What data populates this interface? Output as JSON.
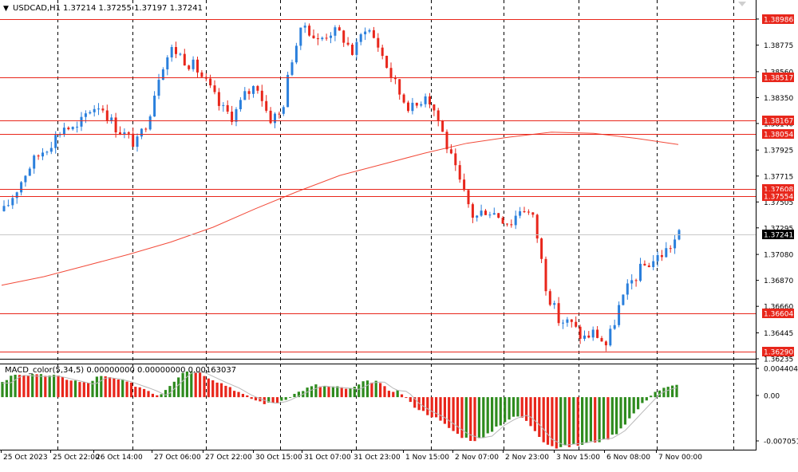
{
  "header": {
    "arrow": "▼",
    "symbol": "USDCAD,H1",
    "ohlc": "1.37214 1.37255 1.37197 1.37241"
  },
  "indicator_header": "MACD_color(5,34,5) 0.00000000 0.00000000 0.00163037",
  "price_axis": {
    "ticks": [
      "1.38986",
      "1.38775",
      "1.38560",
      "1.38350",
      "1.38140",
      "1.37925",
      "1.37715",
      "1.37505",
      "1.37295",
      "1.37080",
      "1.36870",
      "1.36660",
      "1.36445",
      "1.36235"
    ],
    "current_price": "1.37241",
    "current_price_color": "#000000"
  },
  "levels": {
    "color": "#e8261b",
    "values": [
      "1.38986",
      "1.38517",
      "1.38167",
      "1.38054",
      "1.37608",
      "1.37554",
      "1.36604",
      "1.36290"
    ]
  },
  "macd_axis": {
    "ticks": [
      "0.0044049",
      "0.00",
      "-0.0070513"
    ]
  },
  "time_axis": {
    "labels": [
      "25 Oct 2023",
      "25 Oct 22:00",
      "26 Oct 14:00",
      "27 Oct 06:00",
      "27 Oct 22:00",
      "30 Oct 15:00",
      "31 Oct 07:00",
      "31 Oct 23:00",
      "1 Nov 15:00",
      "2 Nov 07:00",
      "2 Nov 23:00",
      "3 Nov 15:00",
      "6 Nov 08:00",
      "7 Nov 00:00"
    ]
  },
  "colors": {
    "bull": "#2a7fdc",
    "bear": "#e8261b",
    "ma": "#f24b3a",
    "macd_pos": "#2e8b1e",
    "macd_neg": "#e8261b",
    "grid": "#000000",
    "axis_text": "#000000"
  },
  "chart_data": [
    {
      "type": "candlestick",
      "symbol": "USDCAD",
      "timeframe": "H1",
      "ylim": [
        1.36235,
        1.3905
      ],
      "moving_average": [
        1.3683,
        1.369,
        1.3699,
        1.3708,
        1.3718,
        1.373,
        1.3745,
        1.3759,
        1.3772,
        1.3781,
        1.379,
        1.3798,
        1.3803,
        1.3807,
        1.3806,
        1.3802,
        1.3797
      ],
      "close_path": [
        1.3743,
        1.376,
        1.3778,
        1.379,
        1.38,
        1.3812,
        1.3808,
        1.3825,
        1.383,
        1.3814,
        1.3805,
        1.3797,
        1.382,
        1.386,
        1.3875,
        1.3866,
        1.3858,
        1.3843,
        1.3826,
        1.382,
        1.3837,
        1.3846,
        1.3818,
        1.3822,
        1.3873,
        1.3895,
        1.388,
        1.3889,
        1.3886,
        1.387,
        1.3894,
        1.3878,
        1.3855,
        1.3835,
        1.3825,
        1.384,
        1.3818,
        1.3788,
        1.376,
        1.3737,
        1.3745,
        1.374,
        1.3733,
        1.3748,
        1.3735,
        1.368,
        1.3655,
        1.3652,
        1.364,
        1.3645,
        1.3634,
        1.3665,
        1.3685,
        1.3698,
        1.3704,
        1.3712,
        1.3724
      ]
    },
    {
      "type": "bar",
      "name": "MACD_color(5,34,5)",
      "ylim": [
        -0.0070513,
        0.0044049
      ],
      "values": [
        0.002,
        0.0031,
        0.003,
        0.0029,
        0.003,
        0.0026,
        0.0022,
        0.0018,
        0.0028,
        0.0026,
        0.0022,
        0.0016,
        0.001,
        0.0002,
        0.0018,
        0.0034,
        0.0036,
        0.0028,
        0.002,
        0.0013,
        0.0003,
        -0.0004,
        -0.0009,
        -0.0006,
        0.0002,
        0.001,
        0.0016,
        0.0014,
        0.0013,
        0.0011,
        0.002,
        0.0022,
        0.001,
        0.0008,
        -0.001,
        -0.002,
        -0.0028,
        -0.004,
        -0.0052,
        -0.0058,
        -0.0055,
        -0.004,
        -0.003,
        -0.0025,
        -0.004,
        -0.006,
        -0.0068,
        -0.0066,
        -0.0064,
        -0.006,
        -0.0058,
        -0.0048,
        -0.003,
        -0.0012,
        0.0006,
        0.0012,
        0.0016
      ]
    }
  ]
}
